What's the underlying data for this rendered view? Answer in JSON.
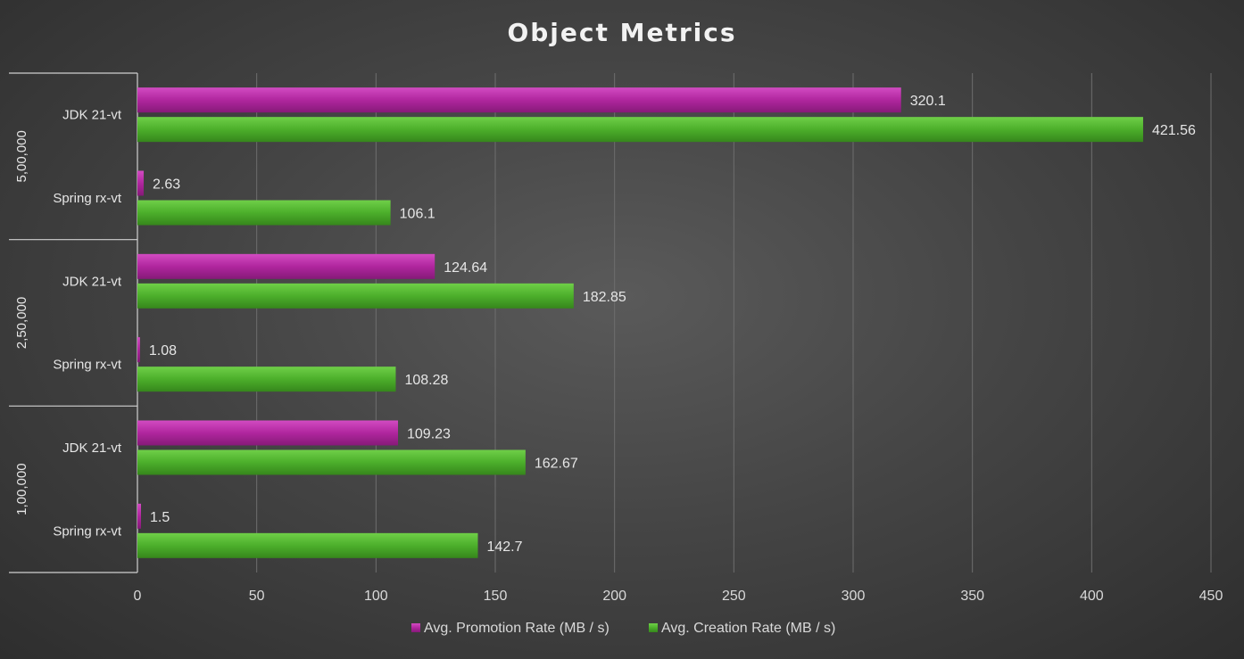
{
  "chart_data": {
    "type": "bar",
    "orientation": "horizontal",
    "title": "Object Metrics",
    "groups": [
      {
        "name": "5,00,000",
        "categories": [
          "JDK 21-vt",
          "Spring rx-vt"
        ]
      },
      {
        "name": "2,50,000",
        "categories": [
          "JDK 21-vt",
          "Spring rx-vt"
        ]
      },
      {
        "name": "1,00,000",
        "categories": [
          "JDK 21-vt",
          "Spring rx-vt"
        ]
      }
    ],
    "series": [
      {
        "name": "Avg. Promotion Rate  (MB / s)",
        "color": "#b0269e",
        "values": [
          320.1,
          2.63,
          124.64,
          1.08,
          109.23,
          1.5
        ],
        "labels": [
          "320.1",
          "2.63",
          "124.64",
          "1.08",
          "109.23",
          "1.5"
        ]
      },
      {
        "name": "Avg. Creation Rate  (MB / s)",
        "color": "#4caf2b",
        "values": [
          421.56,
          106.1,
          182.85,
          108.28,
          162.67,
          142.7
        ],
        "labels": [
          "421.56",
          "106.1",
          "182.85",
          "108.28",
          "162.67",
          "142.7"
        ]
      }
    ],
    "xlim": [
      0,
      450
    ],
    "xticks": [
      "0",
      "50",
      "100",
      "150",
      "200",
      "250",
      "300",
      "350",
      "400",
      "450"
    ],
    "grid": true,
    "legend_position": "bottom"
  }
}
